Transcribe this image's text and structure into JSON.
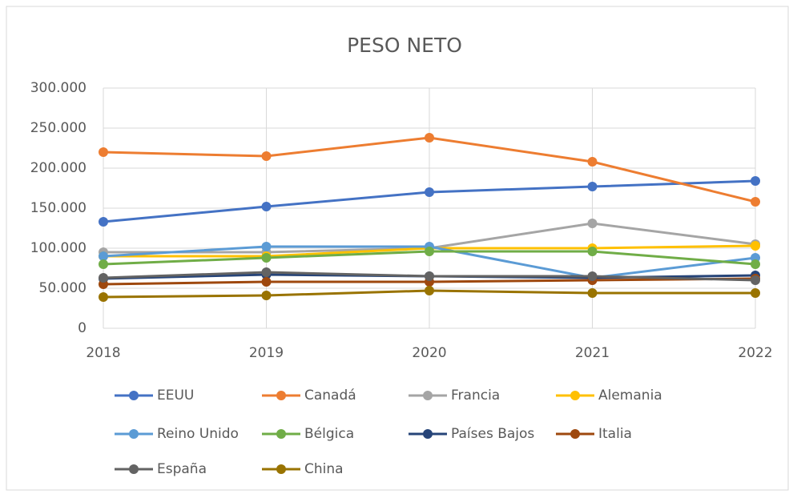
{
  "chart_data": {
    "type": "line",
    "title": "PESO NETO",
    "categories": [
      "2018",
      "2019",
      "2020",
      "2021",
      "2022"
    ],
    "series": [
      {
        "name": "EEUU",
        "color": "#4472c4",
        "values": [
          133000,
          152000,
          170000,
          177000,
          184000
        ]
      },
      {
        "name": "Canadá",
        "color": "#ed7d31",
        "values": [
          220000,
          215000,
          238000,
          208000,
          158000
        ]
      },
      {
        "name": "Francia",
        "color": "#a5a5a5",
        "values": [
          95000,
          95000,
          100000,
          131000,
          105000
        ]
      },
      {
        "name": "Alemania",
        "color": "#ffc000",
        "values": [
          90000,
          90000,
          100000,
          100000,
          103000
        ]
      },
      {
        "name": "Reino Unido",
        "color": "#5b9bd5",
        "values": [
          90000,
          102000,
          102000,
          63000,
          88000
        ]
      },
      {
        "name": "Bélgica",
        "color": "#70ad47",
        "values": [
          80000,
          88000,
          96000,
          96000,
          80000
        ]
      },
      {
        "name": "Países Bajos",
        "color": "#264478",
        "values": [
          62000,
          67000,
          65000,
          63000,
          66000
        ]
      },
      {
        "name": "Italia",
        "color": "#9e480e",
        "values": [
          55000,
          58000,
          58000,
          60000,
          62000
        ]
      },
      {
        "name": "España",
        "color": "#636363",
        "values": [
          63000,
          70000,
          65000,
          65000,
          60000
        ]
      },
      {
        "name": "China",
        "color": "#997300",
        "values": [
          39000,
          41000,
          47000,
          44000,
          44000
        ]
      }
    ],
    "ylim": [
      0,
      300000
    ],
    "yticks": [
      0,
      {
        "value": 50000,
        "label": "50.000"
      },
      {
        "value": 100000,
        "label": "100.000"
      },
      {
        "value": 150000,
        "label": "150.000"
      },
      {
        "value": 200000,
        "label": "200.000"
      },
      {
        "value": 250000,
        "label": "250.000"
      },
      {
        "value": 300000,
        "label": "300.000"
      }
    ],
    "grid": true,
    "legend": "bottom"
  }
}
